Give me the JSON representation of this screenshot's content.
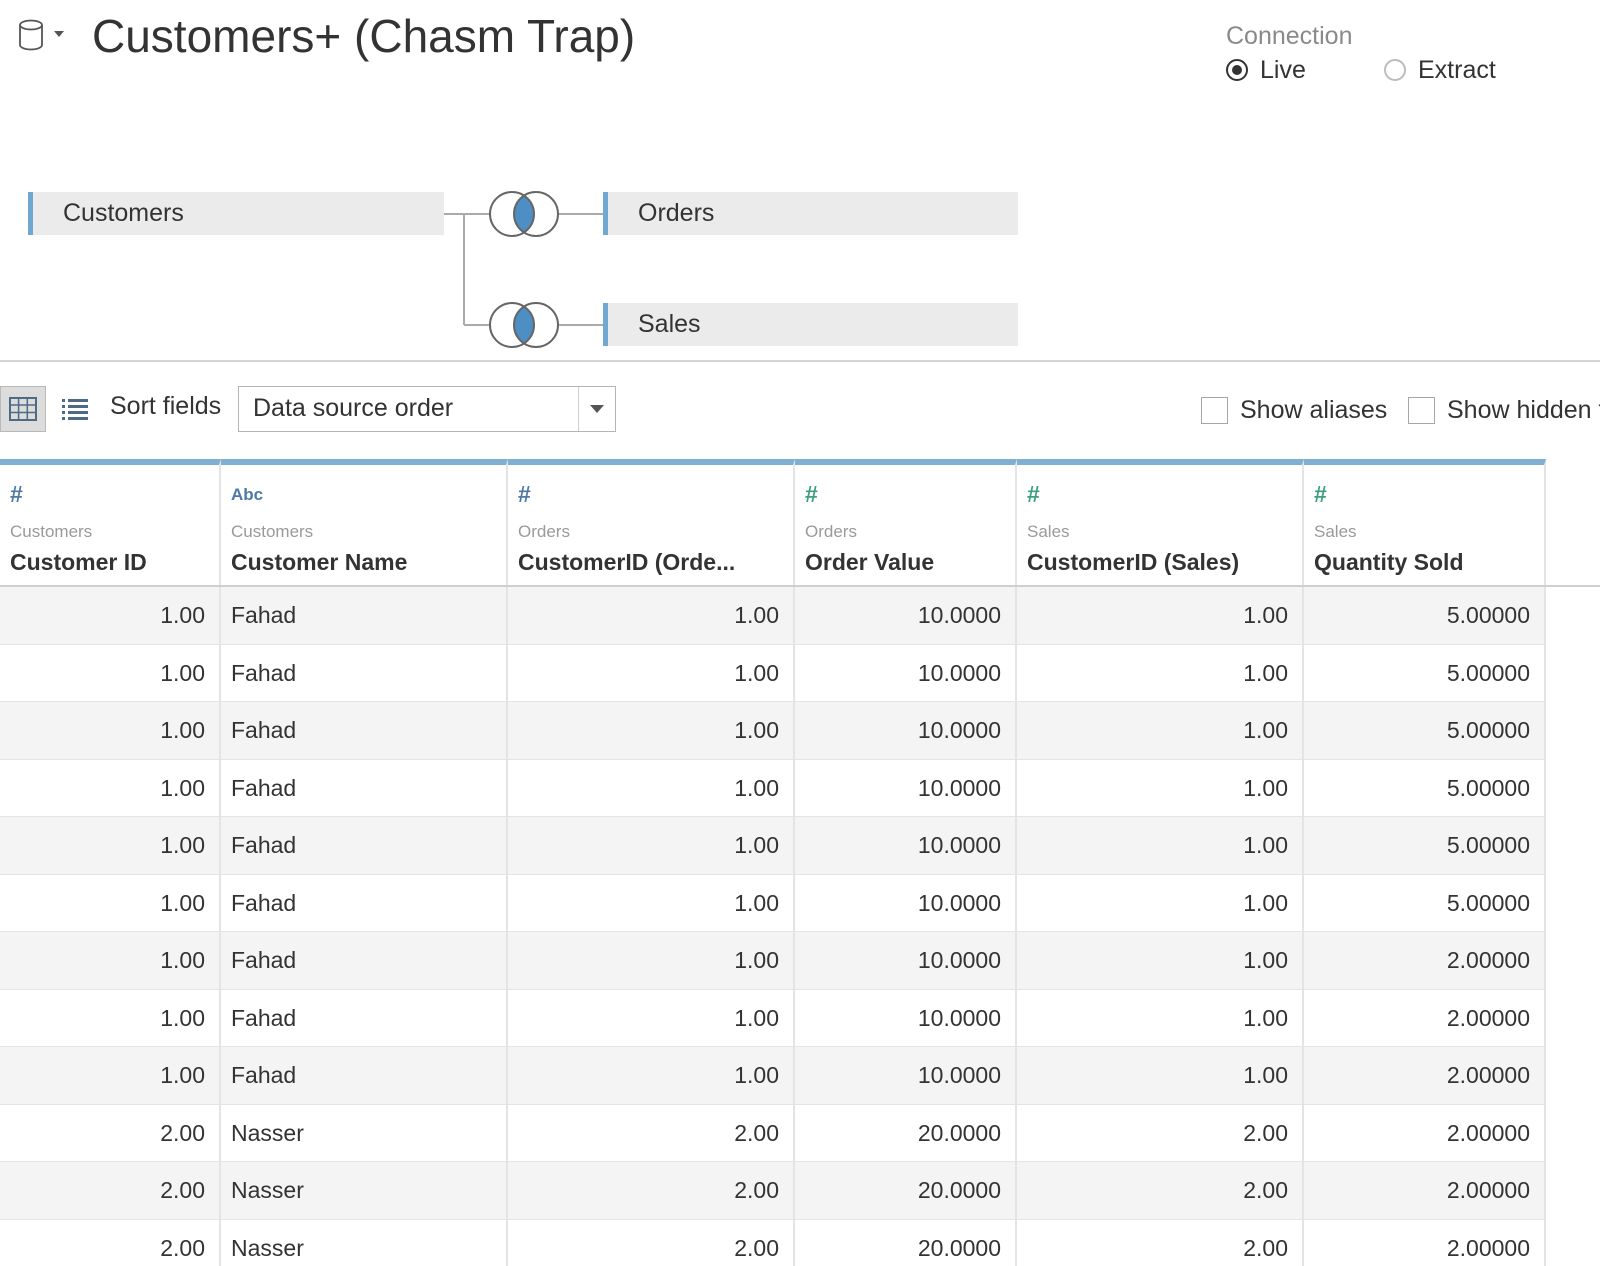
{
  "header": {
    "title": "Customers+ (Chasm Trap)",
    "datasource_icon": "database-cylinder-icon"
  },
  "connection": {
    "label": "Connection",
    "options": [
      {
        "label": "Live",
        "selected": true
      },
      {
        "label": "Extract",
        "selected": false
      }
    ]
  },
  "join_canvas": {
    "tables": {
      "left": "Customers",
      "right": [
        "Orders",
        "Sales"
      ]
    },
    "join_type": "inner-join-icon",
    "accent_color": "#6fa8d0",
    "join_fill_color": "#4d8fc4"
  },
  "toolbar": {
    "sort_label": "Sort fields",
    "sort_value": "Data source order",
    "show_aliases": {
      "label": "Show aliases",
      "checked": false
    },
    "show_hidden": {
      "label": "Show hidden f",
      "checked": false
    }
  },
  "grid": {
    "columns": [
      {
        "type": "#",
        "source": "Customers",
        "name": "Customer ID"
      },
      {
        "type": "Abc",
        "source": "Customers",
        "name": "Customer Name"
      },
      {
        "type": "#",
        "source": "Orders",
        "name": "CustomerID (Orde..."
      },
      {
        "type": "#",
        "source": "Orders",
        "name": "Order Value"
      },
      {
        "type": "#",
        "source": "Sales",
        "name": "CustomerID (Sales)"
      },
      {
        "type": "#",
        "source": "Sales",
        "name": "Quantity Sold"
      }
    ],
    "rows": [
      [
        "1.00",
        "Fahad",
        "1.00",
        "10.0000",
        "1.00",
        "5.00000"
      ],
      [
        "1.00",
        "Fahad",
        "1.00",
        "10.0000",
        "1.00",
        "5.00000"
      ],
      [
        "1.00",
        "Fahad",
        "1.00",
        "10.0000",
        "1.00",
        "5.00000"
      ],
      [
        "1.00",
        "Fahad",
        "1.00",
        "10.0000",
        "1.00",
        "5.00000"
      ],
      [
        "1.00",
        "Fahad",
        "1.00",
        "10.0000",
        "1.00",
        "5.00000"
      ],
      [
        "1.00",
        "Fahad",
        "1.00",
        "10.0000",
        "1.00",
        "5.00000"
      ],
      [
        "1.00",
        "Fahad",
        "1.00",
        "10.0000",
        "1.00",
        "2.00000"
      ],
      [
        "1.00",
        "Fahad",
        "1.00",
        "10.0000",
        "1.00",
        "2.00000"
      ],
      [
        "1.00",
        "Fahad",
        "1.00",
        "10.0000",
        "1.00",
        "2.00000"
      ],
      [
        "2.00",
        "Nasser",
        "2.00",
        "20.0000",
        "2.00",
        "2.00000"
      ],
      [
        "2.00",
        "Nasser",
        "2.00",
        "20.0000",
        "2.00",
        "2.00000"
      ],
      [
        "2.00",
        "Nasser",
        "2.00",
        "20.0000",
        "2.00",
        "2.00000"
      ]
    ]
  }
}
